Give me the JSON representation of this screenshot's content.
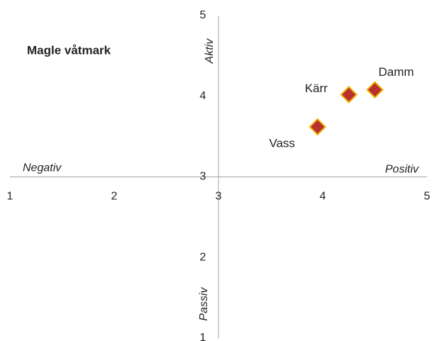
{
  "chart_data": {
    "type": "scatter",
    "title": "Magle våtmark",
    "x": [
      3.95,
      4.25,
      4.5
    ],
    "values": [
      3.62,
      4.02,
      4.08
    ],
    "labels": [
      "Vass",
      "Kärr",
      "Damm"
    ],
    "color": "#b8312f",
    "edge_color": "#f2b705",
    "xlim": [
      1,
      5
    ],
    "xticks": [
      1,
      2,
      3,
      4,
      5
    ],
    "ylim": [
      1,
      5
    ],
    "yticks": [
      1,
      2,
      3,
      4,
      5
    ],
    "annotations": [
      "Aktiv",
      "Passiv",
      "Negativ",
      "Positiv"
    ],
    "grid": false
  }
}
